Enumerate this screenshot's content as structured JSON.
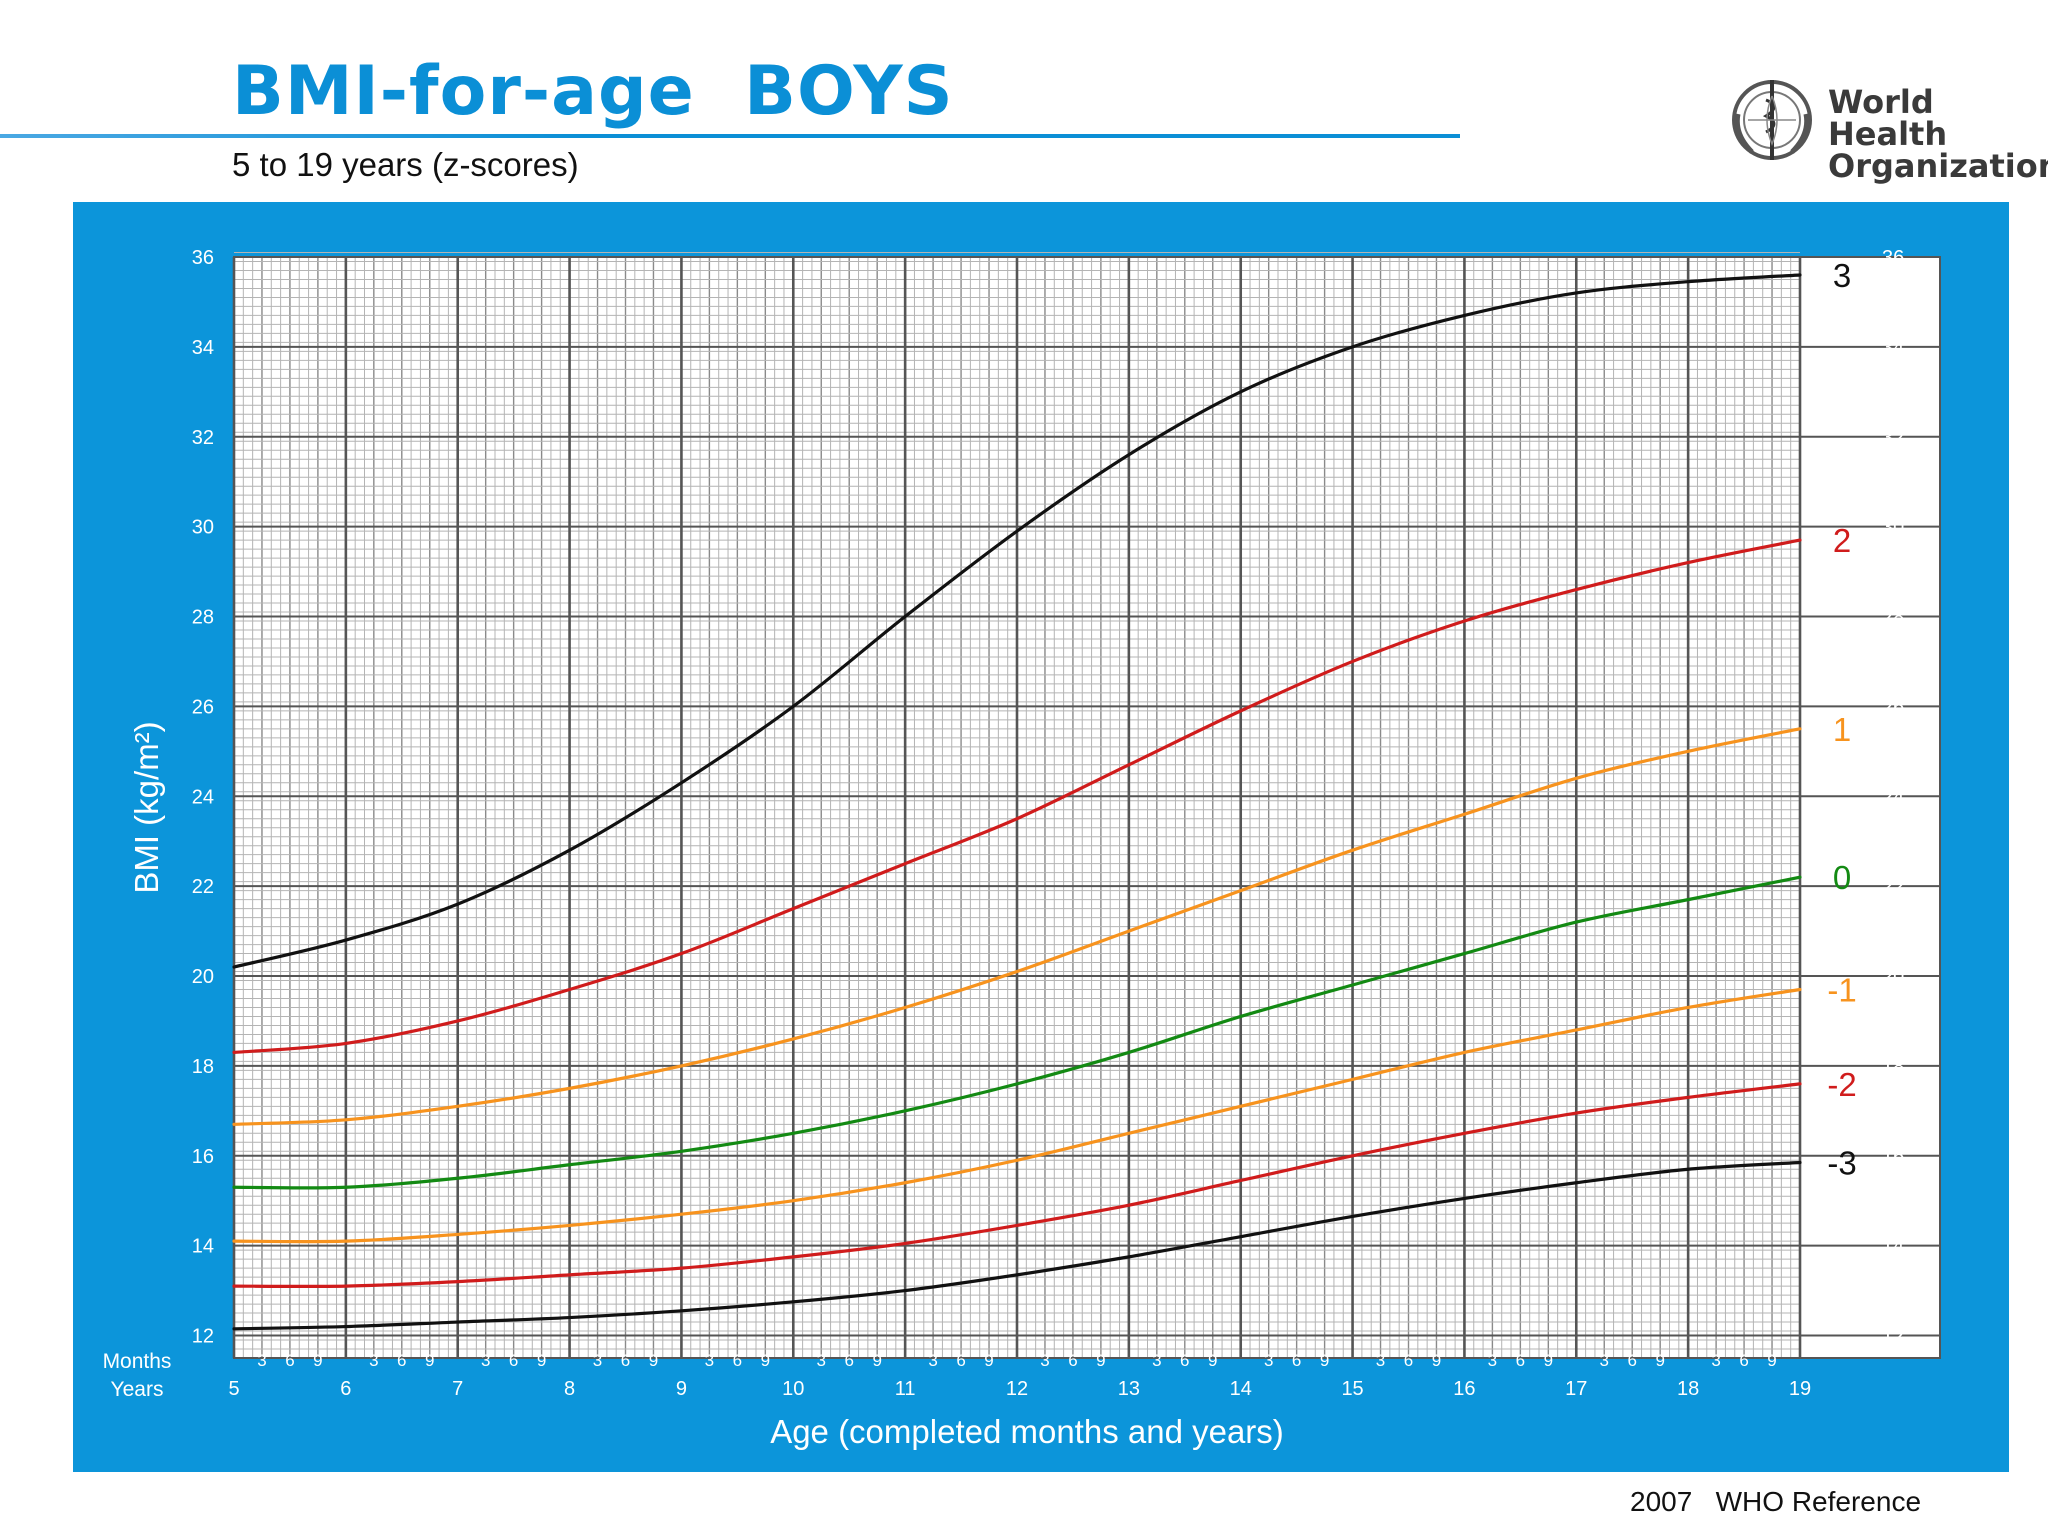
{
  "header": {
    "title": "BMI-for-age  BOYS",
    "subtitle": "5 to 19 years (z-scores)",
    "org_name_line1": "World Health",
    "org_name_line2": "Organization",
    "footer": "2007   WHO Reference"
  },
  "colors": {
    "brand_blue": "#0c95da",
    "title_blue": "#0b8fd6",
    "z3": "#111111",
    "z2": "#d01c1c",
    "z1": "#f7931e",
    "z0": "#138a13"
  },
  "chart_data": {
    "type": "line",
    "title": "BMI-for-age  BOYS",
    "subtitle": "5 to 19 years (z-scores)",
    "xlabel": "Age (completed months and years)",
    "ylabel": "BMI (kg/m²)",
    "xlim": [
      5,
      19
    ],
    "ylim": [
      11.5,
      36
    ],
    "y_ticks": [
      12,
      14,
      16,
      18,
      20,
      22,
      24,
      26,
      28,
      30,
      32,
      34,
      36
    ],
    "x_year_ticks": [
      5,
      6,
      7,
      8,
      9,
      10,
      11,
      12,
      13,
      14,
      15,
      16,
      17,
      18,
      19
    ],
    "x_month_ticks": [
      3,
      6,
      9
    ],
    "row_labels": {
      "months": "Months",
      "years": "Years"
    },
    "grid": true,
    "legend": "z-score labels at right end of curves",
    "x": [
      5,
      6,
      7,
      8,
      9,
      10,
      11,
      12,
      13,
      14,
      15,
      16,
      17,
      18,
      19
    ],
    "series": [
      {
        "name": "3",
        "color": "#111111",
        "values": [
          20.2,
          20.8,
          21.6,
          22.8,
          24.3,
          26.0,
          28.0,
          29.9,
          31.6,
          33.0,
          34.0,
          34.7,
          35.2,
          35.45,
          35.6
        ]
      },
      {
        "name": "2",
        "color": "#d01c1c",
        "values": [
          18.3,
          18.5,
          19.0,
          19.7,
          20.5,
          21.5,
          22.5,
          23.5,
          24.7,
          25.9,
          27.0,
          27.9,
          28.6,
          29.2,
          29.7
        ]
      },
      {
        "name": "1",
        "color": "#f7931e",
        "values": [
          16.7,
          16.8,
          17.1,
          17.5,
          18.0,
          18.6,
          19.3,
          20.1,
          21.0,
          21.9,
          22.8,
          23.6,
          24.4,
          25.0,
          25.5
        ]
      },
      {
        "name": "0",
        "color": "#138a13",
        "values": [
          15.3,
          15.3,
          15.5,
          15.8,
          16.1,
          16.5,
          17.0,
          17.6,
          18.3,
          19.1,
          19.8,
          20.5,
          21.2,
          21.7,
          22.2
        ]
      },
      {
        "name": "-1",
        "color": "#f7931e",
        "values": [
          14.1,
          14.1,
          14.25,
          14.45,
          14.7,
          15.0,
          15.4,
          15.9,
          16.5,
          17.1,
          17.7,
          18.3,
          18.8,
          19.3,
          19.7
        ]
      },
      {
        "name": "-2",
        "color": "#d01c1c",
        "values": [
          13.1,
          13.1,
          13.2,
          13.35,
          13.5,
          13.75,
          14.05,
          14.45,
          14.9,
          15.45,
          16.0,
          16.5,
          16.95,
          17.3,
          17.6
        ]
      },
      {
        "name": "-3",
        "color": "#111111",
        "values": [
          12.15,
          12.2,
          12.3,
          12.4,
          12.55,
          12.75,
          13.0,
          13.35,
          13.75,
          14.2,
          14.65,
          15.05,
          15.4,
          15.7,
          15.85
        ]
      }
    ]
  }
}
